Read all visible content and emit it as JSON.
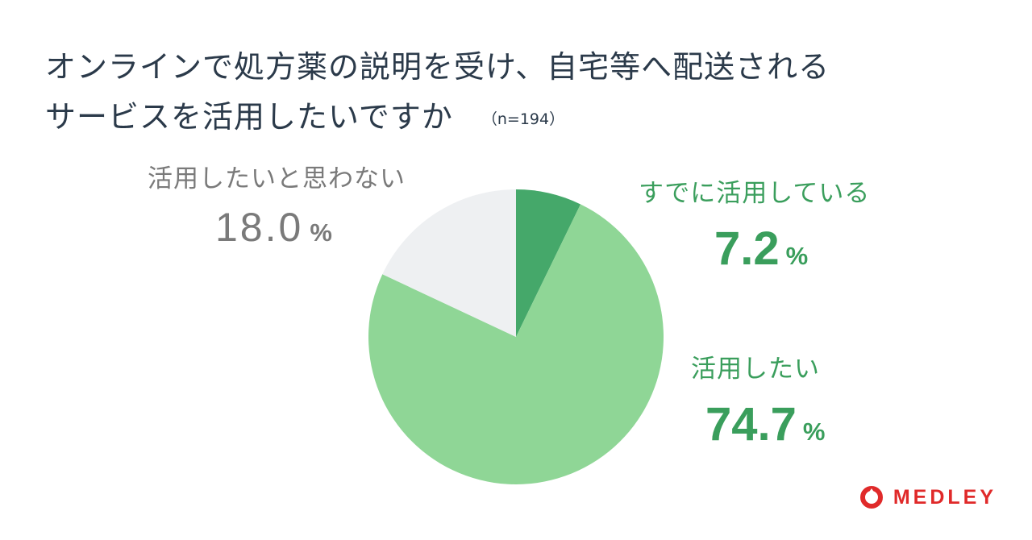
{
  "title": {
    "line1": "オンラインで処方薬の説明を受け、自宅等へ配送される",
    "line2": "サービスを活用したいですか",
    "n": "（n=194）"
  },
  "chart_data": {
    "type": "pie",
    "start_angle_deg": 0,
    "direction": "clockwise",
    "slices": [
      {
        "label": "すでに活用している",
        "value": 7.2,
        "display": "7.2",
        "color": "#45a86a"
      },
      {
        "label": "活用したい",
        "value": 74.7,
        "display": "74.7",
        "color": "#8fd696"
      },
      {
        "label": "活用したいと思わない",
        "value": 18.0,
        "display": "18.0",
        "color": "#eef0f2"
      }
    ],
    "unit": "%"
  },
  "logo": {
    "text": "MEDLEY",
    "color": "#e02a2a"
  }
}
